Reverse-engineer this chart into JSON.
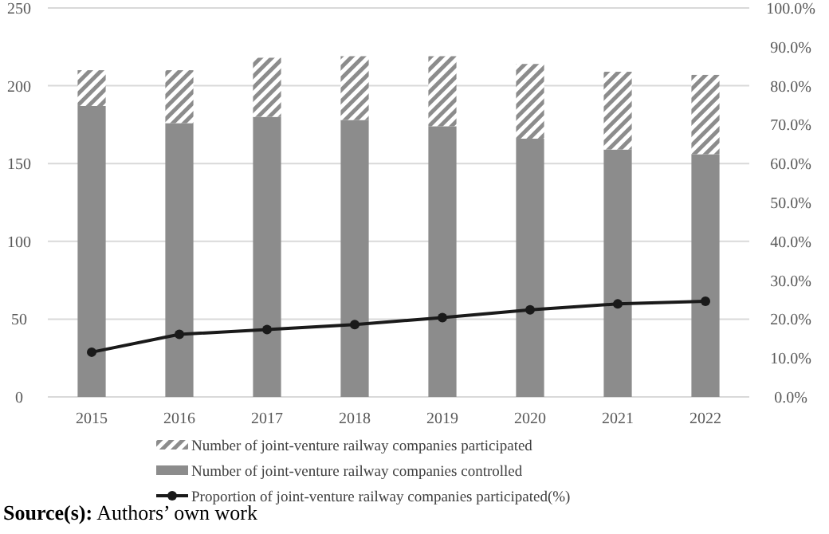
{
  "chart_data": {
    "type": "bar",
    "stacked": true,
    "categories": [
      "2015",
      "2016",
      "2017",
      "2018",
      "2019",
      "2020",
      "2021",
      "2022"
    ],
    "series": [
      {
        "name": "Number of joint-venture railway companies controlled",
        "color": "#8c8c8c",
        "values": [
          187,
          176,
          180,
          178,
          174,
          166,
          159,
          156
        ]
      },
      {
        "name": "Number of joint-venture railway companies participated",
        "color": "#8c8c8c",
        "values": [
          23,
          34,
          38,
          41,
          45,
          48,
          50,
          51
        ]
      },
      {
        "name": "Proportion of joint-venture railway companies participated(%)",
        "type": "line",
        "axis": "y2",
        "color": "#1a1a1a",
        "values": [
          11.5,
          16.1,
          17.3,
          18.6,
          20.4,
          22.4,
          23.9,
          24.6
        ]
      }
    ],
    "ylim": [
      0,
      250
    ],
    "yticks": [
      0,
      50,
      100,
      150,
      200,
      250
    ],
    "y2lim": [
      0,
      100
    ],
    "y2ticks": [
      {
        "value": 0,
        "label": "0.0%"
      },
      {
        "value": 10,
        "label": "10.0%"
      },
      {
        "value": 20,
        "label": "20.0%"
      },
      {
        "value": 30,
        "label": "30.0%"
      },
      {
        "value": 40,
        "label": "40.0%"
      },
      {
        "value": 50,
        "label": "50.0%"
      },
      {
        "value": 60,
        "label": "60.0%"
      },
      {
        "value": 70,
        "label": "70.0%"
      },
      {
        "value": 80,
        "label": "80.0%"
      },
      {
        "value": 90,
        "label": "90.0%"
      },
      {
        "value": 100,
        "label": "100.0%"
      }
    ],
    "grid": "y",
    "legend": "bottom",
    "marker": "circle",
    "line_style": "solid",
    "annotations": [
      "Source(s): Authors’ own work"
    ]
  }
}
